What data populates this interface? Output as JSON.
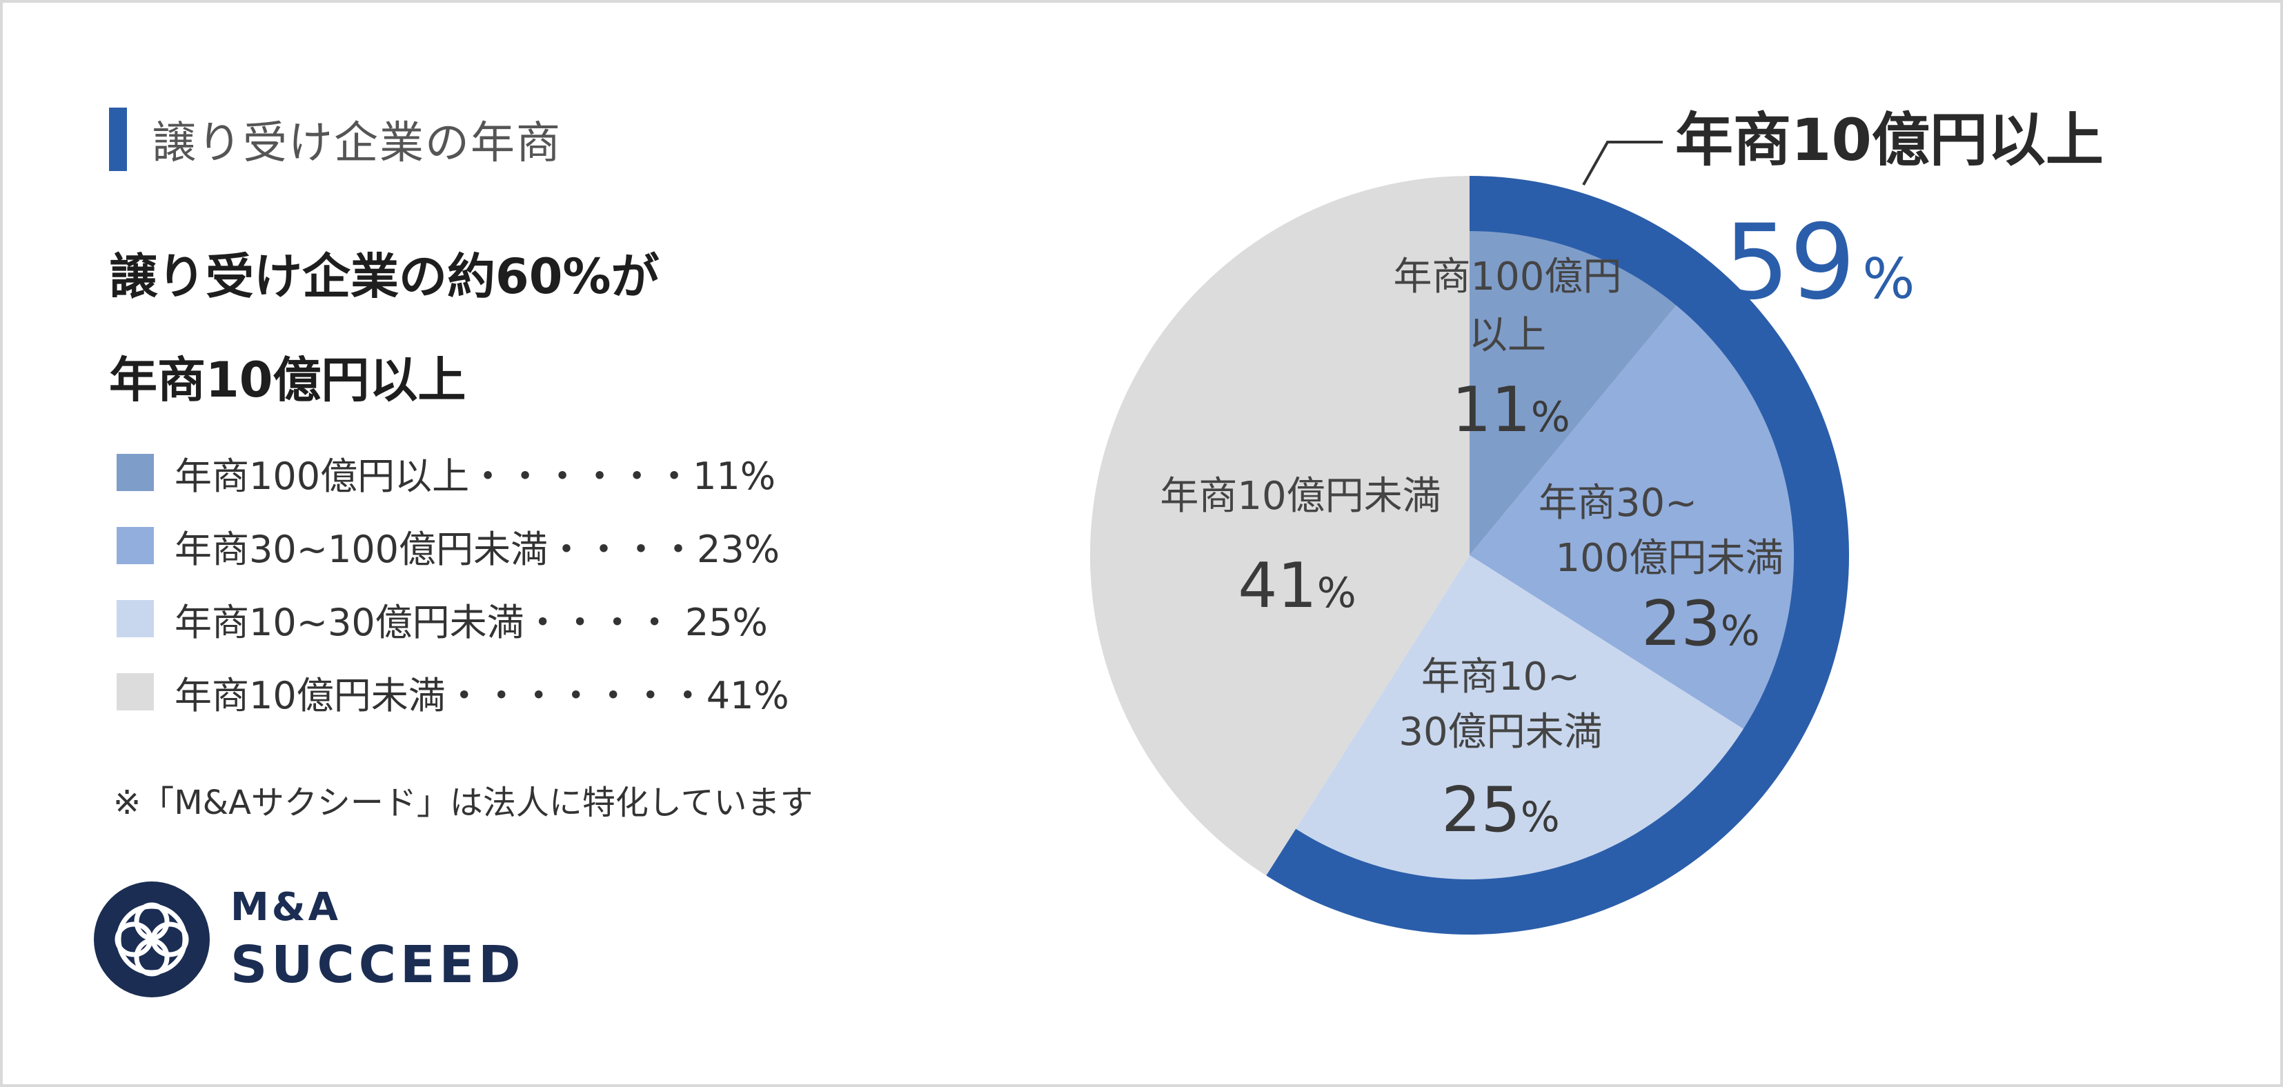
{
  "section_title": "譲り受け企業の年商",
  "headline": [
    "譲り受け企業の約60%が",
    "年商10億円以上"
  ],
  "legend": [
    {
      "text": "年商100億円以上・・・・・・11%",
      "color": "#7f9dc9"
    },
    {
      "text": "年商30~100億円未満・・・・23%",
      "color": "#92aedd"
    },
    {
      "text": "年商10~30億円未満・・・・ 25%",
      "color": "#c8d7ee"
    },
    {
      "text": "年商10億円未満・・・・・・・41%",
      "color": "#dcdcdc"
    }
  ],
  "note": "※「M&Aサクシード」は法人に特化しています",
  "logo": {
    "line1": "M&A",
    "line2": "SUCCEED",
    "icon": "knot-logo-icon",
    "color": "#1b2d52"
  },
  "callout": {
    "label": "年商10億円以上",
    "value": "59",
    "unit": "%",
    "color": "#2b5eaa"
  },
  "chart_data": {
    "type": "pie",
    "categories": [
      "年商100億円以上",
      "年商30~100億円未満",
      "年商10~30億円未満",
      "年商10億円未満"
    ],
    "values": [
      11,
      23,
      25,
      41
    ],
    "colors": [
      "#7f9dc9",
      "#92aedd",
      "#c8d7ee",
      "#dcdcdc"
    ],
    "unit": "%",
    "slice_labels": [
      [
        "年商100億円",
        "以上"
      ],
      [
        "年商30~",
        "100億円未満"
      ],
      [
        "年商10~",
        "30億円未満"
      ],
      [
        "年商10億円未満"
      ]
    ],
    "highlight": {
      "label": "年商10億円以上",
      "value": 59,
      "unit": "%",
      "color": "#2b5eaa"
    }
  }
}
